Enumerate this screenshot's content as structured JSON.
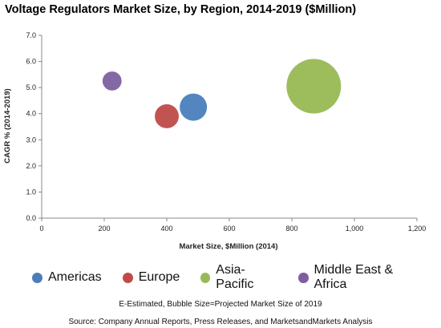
{
  "title": "Voltage Regulators Market Size, by Region, 2014-2019 ($Million)",
  "footnote": "E-Estimated, Bubble Size=Projected Market Size of 2019",
  "source": "Source: Company Annual Reports, Press Releases, and MarketsandMarkets Analysis",
  "chart_data": {
    "type": "scatter",
    "title": "Voltage Regulators Market Size, by Region, 2014-2019 ($Million)",
    "xlabel": "Market Size, $Million (2014)",
    "ylabel": "CAGR % (2014-2019)",
    "xlim": [
      0,
      1200
    ],
    "ylim": [
      0.0,
      7.0
    ],
    "x_ticks": [
      "0",
      "200",
      "400",
      "600",
      "800",
      "1,000",
      "1,200"
    ],
    "y_ticks": [
      "0.0",
      "1.0",
      "2.0",
      "3.0",
      "4.0",
      "5.0",
      "6.0",
      "7.0"
    ],
    "grid": false,
    "legend_position": "bottom",
    "series": [
      {
        "name": "Americas",
        "x": 485,
        "y": 4.25,
        "bubble_rel": 0.5,
        "color": "#4a7ebb"
      },
      {
        "name": "Europe",
        "x": 400,
        "y": 3.9,
        "bubble_rel": 0.44,
        "color": "#be4b48"
      },
      {
        "name": "Asia-Pacific",
        "x": 870,
        "y": 5.05,
        "bubble_rel": 1.0,
        "color": "#98b954"
      },
      {
        "name": "Middle East & Africa",
        "x": 225,
        "y": 5.25,
        "bubble_rel": 0.35,
        "color": "#7d5fa0"
      }
    ]
  }
}
